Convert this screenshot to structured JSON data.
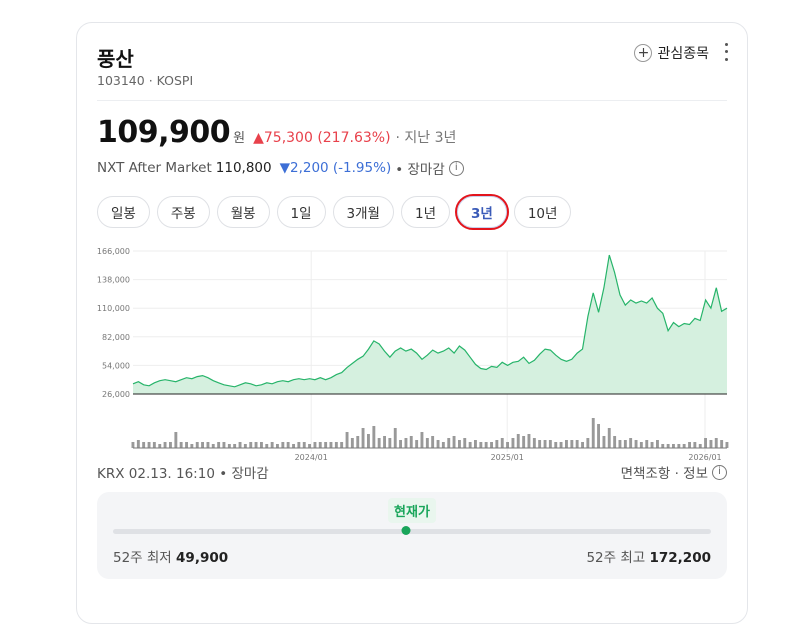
{
  "stock": {
    "name": "풍산",
    "code_line": "103140 · KOSPI",
    "watch_label": "관심종목",
    "price": "109,900",
    "currency": "원",
    "change": "▲75,300 (217.63%)",
    "period": "· 지난 3년"
  },
  "nxt": {
    "label": "NXT After Market",
    "price": "110,800",
    "change": "▼2,200 (-1.95%)",
    "status": "• 장마감"
  },
  "tabs": [
    {
      "label": "일봉",
      "active": false
    },
    {
      "label": "주봉",
      "active": false
    },
    {
      "label": "월봉",
      "active": false
    },
    {
      "label": "1일",
      "active": false
    },
    {
      "label": "3개월",
      "active": false
    },
    {
      "label": "1년",
      "active": false
    },
    {
      "label": "3년",
      "active": true
    },
    {
      "label": "10년",
      "active": false
    }
  ],
  "colors": {
    "line": "#27b46a",
    "fill": "#d5f0df",
    "up": "#e8414b",
    "down": "#3d6fd6"
  },
  "chart_data": {
    "type": "area",
    "yticks": [
      "166,000",
      "138,000",
      "110,000",
      "82,000",
      "54,000",
      "26,000"
    ],
    "ylim": [
      26000,
      166000
    ],
    "xticks": [
      {
        "label": "2024/01",
        "t": 0.3
      },
      {
        "label": "2025/01",
        "t": 0.63
      },
      {
        "label": "2026/01",
        "t": 0.963
      }
    ],
    "grid": true,
    "values": [
      36000,
      38000,
      35000,
      34000,
      37000,
      39000,
      40000,
      39000,
      38000,
      40000,
      42000,
      41000,
      43000,
      44000,
      42000,
      39000,
      37000,
      35000,
      34000,
      33000,
      35000,
      37000,
      36000,
      34000,
      35000,
      37000,
      36000,
      38000,
      39000,
      38000,
      40000,
      41000,
      40000,
      41000,
      40000,
      42000,
      40000,
      42000,
      45000,
      47000,
      52000,
      56000,
      60000,
      63000,
      70000,
      78000,
      75000,
      68000,
      62000,
      68000,
      71000,
      68000,
      70000,
      66000,
      60000,
      64000,
      69000,
      66000,
      68000,
      71000,
      66000,
      73000,
      69000,
      62000,
      55000,
      51000,
      50000,
      53000,
      52000,
      57000,
      54000,
      57000,
      58000,
      62000,
      56000,
      59000,
      65000,
      70000,
      69000,
      64000,
      60000,
      58000,
      60000,
      66000,
      70000,
      102000,
      125000,
      106000,
      130000,
      162000,
      145000,
      123000,
      113000,
      118000,
      115000,
      117000,
      115000,
      120000,
      110000,
      105000,
      88000,
      96000,
      92000,
      95000,
      94000,
      100000,
      98000,
      118000,
      110000,
      130000,
      107000,
      110000
    ],
    "volume": [
      3,
      4,
      3,
      3,
      3,
      2,
      3,
      3,
      8,
      3,
      3,
      2,
      3,
      3,
      3,
      2,
      3,
      3,
      2,
      2,
      3,
      2,
      3,
      3,
      3,
      2,
      3,
      2,
      3,
      3,
      2,
      3,
      3,
      2,
      3,
      3,
      3,
      3,
      3,
      3,
      8,
      5,
      6,
      10,
      7,
      11,
      5,
      6,
      5,
      10,
      4,
      5,
      6,
      4,
      8,
      5,
      6,
      4,
      3,
      5,
      6,
      4,
      5,
      3,
      4,
      3,
      3,
      3,
      4,
      5,
      3,
      5,
      7,
      6,
      7,
      5,
      4,
      4,
      4,
      3,
      3,
      4,
      4,
      4,
      3,
      5,
      15,
      12,
      6,
      10,
      6,
      4,
      4,
      5,
      4,
      3,
      4,
      3,
      4,
      2,
      2,
      2,
      2,
      2,
      3,
      3,
      2,
      5,
      4,
      5,
      4,
      3
    ]
  },
  "footer": {
    "left": "KRX 02.13. 16:10 • 장마감",
    "right": "면책조항 · 정보"
  },
  "range52": {
    "current_label": "현재가",
    "low_label": "52주 최저",
    "low_value": "49,900",
    "high_label": "52주 최고",
    "high_value": "172,200",
    "current_fraction": 0.49
  }
}
